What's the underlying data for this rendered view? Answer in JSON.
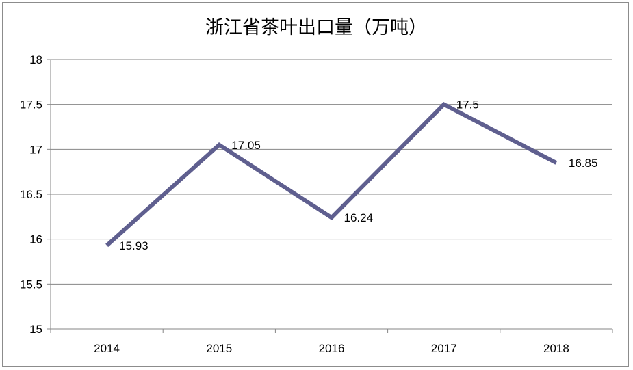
{
  "chart_data": {
    "type": "line",
    "title": "浙江省茶叶出口量（万吨）",
    "categories": [
      "2014",
      "2015",
      "2016",
      "2017",
      "2018"
    ],
    "series": [
      {
        "values": [
          15.93,
          17.05,
          16.24,
          17.5,
          16.85
        ],
        "color": "#5f5f8f"
      }
    ],
    "data_labels": [
      "15.93",
      "17.05",
      "16.24",
      "17.5",
      "16.85"
    ],
    "y_ticks": [
      "15",
      "15.5",
      "16",
      "16.5",
      "17",
      "17.5",
      "18"
    ],
    "ylim": [
      15,
      18
    ],
    "grid": true,
    "legend": "none",
    "gridline_color": "#868686"
  }
}
